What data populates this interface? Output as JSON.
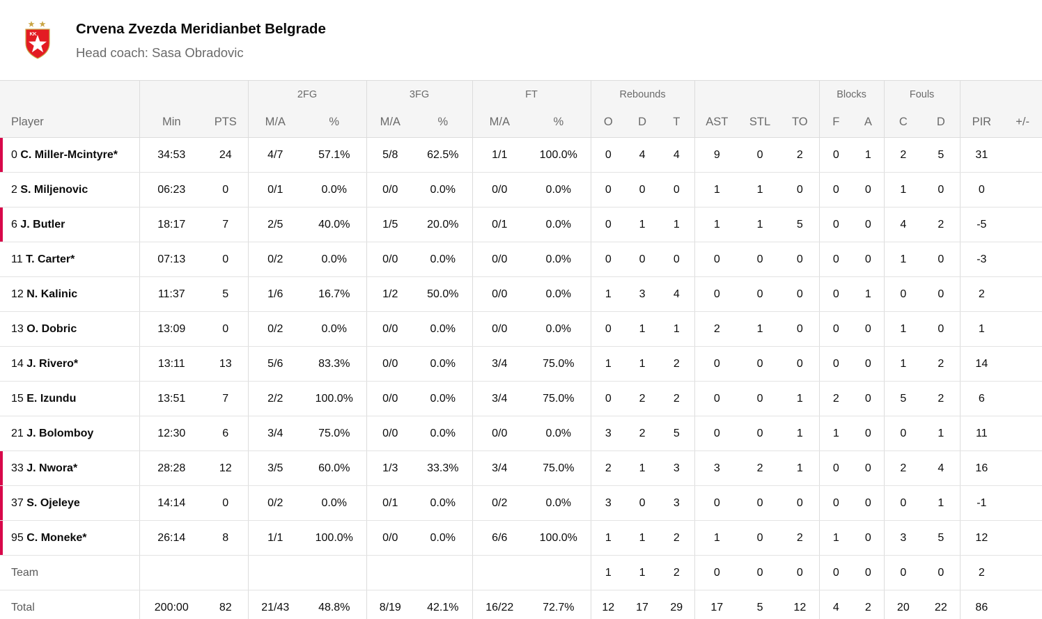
{
  "team": {
    "name": "Crvena Zvezda Meridianbet Belgrade",
    "coach": "Head coach: Sasa Obradovic",
    "logo_text": "KK",
    "colors": {
      "red": "#e31b23",
      "gold": "#c9a646",
      "accent": "#d8084a"
    }
  },
  "groups": {
    "fg2": "2FG",
    "fg3": "3FG",
    "ft": "FT",
    "rebounds": "Rebounds",
    "blocks": "Blocks",
    "fouls": "Fouls"
  },
  "columns": [
    "Player",
    "Min",
    "PTS",
    "M/A",
    "%",
    "M/A",
    "%",
    "M/A",
    "%",
    "O",
    "D",
    "T",
    "AST",
    "STL",
    "TO",
    "F",
    "A",
    "C",
    "D",
    "PIR",
    "+/-"
  ],
  "rows": [
    {
      "starter": true,
      "num": "0",
      "name": "C. Miller-Mcintyre*",
      "cells": [
        "34:53",
        "24",
        "4/7",
        "57.1%",
        "5/8",
        "62.5%",
        "1/1",
        "100.0%",
        "0",
        "4",
        "4",
        "9",
        "0",
        "2",
        "0",
        "1",
        "2",
        "5",
        "31",
        ""
      ]
    },
    {
      "starter": false,
      "num": "2",
      "name": "S. Miljenovic",
      "cells": [
        "06:23",
        "0",
        "0/1",
        "0.0%",
        "0/0",
        "0.0%",
        "0/0",
        "0.0%",
        "0",
        "0",
        "0",
        "1",
        "1",
        "0",
        "0",
        "0",
        "1",
        "0",
        "0",
        ""
      ]
    },
    {
      "starter": true,
      "num": "6",
      "name": "J. Butler",
      "cells": [
        "18:17",
        "7",
        "2/5",
        "40.0%",
        "1/5",
        "20.0%",
        "0/1",
        "0.0%",
        "0",
        "1",
        "1",
        "1",
        "1",
        "5",
        "0",
        "0",
        "4",
        "2",
        "-5",
        ""
      ]
    },
    {
      "starter": false,
      "num": "11",
      "name": "T. Carter*",
      "cells": [
        "07:13",
        "0",
        "0/2",
        "0.0%",
        "0/0",
        "0.0%",
        "0/0",
        "0.0%",
        "0",
        "0",
        "0",
        "0",
        "0",
        "0",
        "0",
        "0",
        "1",
        "0",
        "-3",
        ""
      ]
    },
    {
      "starter": false,
      "num": "12",
      "name": "N. Kalinic",
      "cells": [
        "11:37",
        "5",
        "1/6",
        "16.7%",
        "1/2",
        "50.0%",
        "0/0",
        "0.0%",
        "1",
        "3",
        "4",
        "0",
        "0",
        "0",
        "0",
        "1",
        "0",
        "0",
        "2",
        ""
      ]
    },
    {
      "starter": false,
      "num": "13",
      "name": "O. Dobric",
      "cells": [
        "13:09",
        "0",
        "0/2",
        "0.0%",
        "0/0",
        "0.0%",
        "0/0",
        "0.0%",
        "0",
        "1",
        "1",
        "2",
        "1",
        "0",
        "0",
        "0",
        "1",
        "0",
        "1",
        ""
      ]
    },
    {
      "starter": false,
      "num": "14",
      "name": "J. Rivero*",
      "cells": [
        "13:11",
        "13",
        "5/6",
        "83.3%",
        "0/0",
        "0.0%",
        "3/4",
        "75.0%",
        "1",
        "1",
        "2",
        "0",
        "0",
        "0",
        "0",
        "0",
        "1",
        "2",
        "14",
        ""
      ]
    },
    {
      "starter": false,
      "num": "15",
      "name": "E. Izundu",
      "cells": [
        "13:51",
        "7",
        "2/2",
        "100.0%",
        "0/0",
        "0.0%",
        "3/4",
        "75.0%",
        "0",
        "2",
        "2",
        "0",
        "0",
        "1",
        "2",
        "0",
        "5",
        "2",
        "6",
        ""
      ]
    },
    {
      "starter": false,
      "num": "21",
      "name": "J. Bolomboy",
      "cells": [
        "12:30",
        "6",
        "3/4",
        "75.0%",
        "0/0",
        "0.0%",
        "0/0",
        "0.0%",
        "3",
        "2",
        "5",
        "0",
        "0",
        "1",
        "1",
        "0",
        "0",
        "1",
        "11",
        ""
      ]
    },
    {
      "starter": true,
      "num": "33",
      "name": "J. Nwora*",
      "cells": [
        "28:28",
        "12",
        "3/5",
        "60.0%",
        "1/3",
        "33.3%",
        "3/4",
        "75.0%",
        "2",
        "1",
        "3",
        "3",
        "2",
        "1",
        "0",
        "0",
        "2",
        "4",
        "16",
        ""
      ]
    },
    {
      "starter": true,
      "num": "37",
      "name": "S. Ojeleye",
      "cells": [
        "14:14",
        "0",
        "0/2",
        "0.0%",
        "0/1",
        "0.0%",
        "0/2",
        "0.0%",
        "3",
        "0",
        "3",
        "0",
        "0",
        "0",
        "0",
        "0",
        "0",
        "1",
        "-1",
        ""
      ]
    },
    {
      "starter": true,
      "num": "95",
      "name": "C. Moneke*",
      "cells": [
        "26:14",
        "8",
        "1/1",
        "100.0%",
        "0/0",
        "0.0%",
        "6/6",
        "100.0%",
        "1",
        "1",
        "2",
        "1",
        "0",
        "2",
        "1",
        "0",
        "3",
        "5",
        "12",
        ""
      ]
    }
  ],
  "team_row": {
    "label": "Team",
    "cells": [
      "",
      "",
      "",
      "",
      "",
      "",
      "",
      "",
      "1",
      "1",
      "2",
      "0",
      "0",
      "0",
      "0",
      "0",
      "0",
      "0",
      "2",
      ""
    ]
  },
  "total_row": {
    "label": "Total",
    "cells": [
      "200:00",
      "82",
      "21/43",
      "48.8%",
      "8/19",
      "42.1%",
      "16/22",
      "72.7%",
      "12",
      "17",
      "29",
      "17",
      "5",
      "12",
      "4",
      "2",
      "20",
      "22",
      "86",
      ""
    ]
  }
}
